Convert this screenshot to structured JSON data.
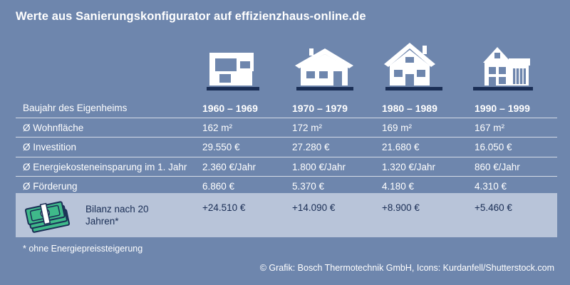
{
  "title": "Werte aus Sanierungskonfigurator auf effizienzhaus-online.de",
  "icons": [
    "modern-house-icon",
    "bungalow-house-icon",
    "two-story-house-icon",
    "gabled-house-icon"
  ],
  "columns": [
    "1960 – 1969",
    "1970 – 1979",
    "1980 – 1989",
    "1990 – 1999"
  ],
  "header_label": "Baujahr des Eigenheims",
  "rows": [
    {
      "label": "Ø Wohnfläche",
      "values": [
        "162 m²",
        "172 m²",
        "169 m²",
        "167 m²"
      ]
    },
    {
      "label": "Ø Investition",
      "values": [
        "29.550 €",
        "27.280 €",
        "21.680 €",
        "16.050 €"
      ]
    },
    {
      "label": "Ø Energiekosteneinsparung im 1. Jahr",
      "values": [
        "2.360 €/Jahr",
        "1.800 €/Jahr",
        "1.320 €/Jahr",
        "860 €/Jahr"
      ]
    },
    {
      "label": "Ø Förderung",
      "values": [
        "6.860 €",
        "5.370 €",
        "4.180 €",
        "4.310 €"
      ]
    }
  ],
  "bilanz": {
    "label": "Bilanz nach 20 Jahren*",
    "values": [
      "+24.510 €",
      "+14.090 €",
      "+8.900 €",
      "+5.460 €"
    ]
  },
  "footnote": "* ohne Energiepreissteigerung",
  "credit": "© Grafik: Bosch Thermotechnik GmbH, Icons: Kurdanfell/Shutterstock.com",
  "colors": {
    "background": "#6e86ad",
    "highlight": "#b8c4d9",
    "dark": "#1a2e55",
    "money_green": "#3fb98a"
  }
}
